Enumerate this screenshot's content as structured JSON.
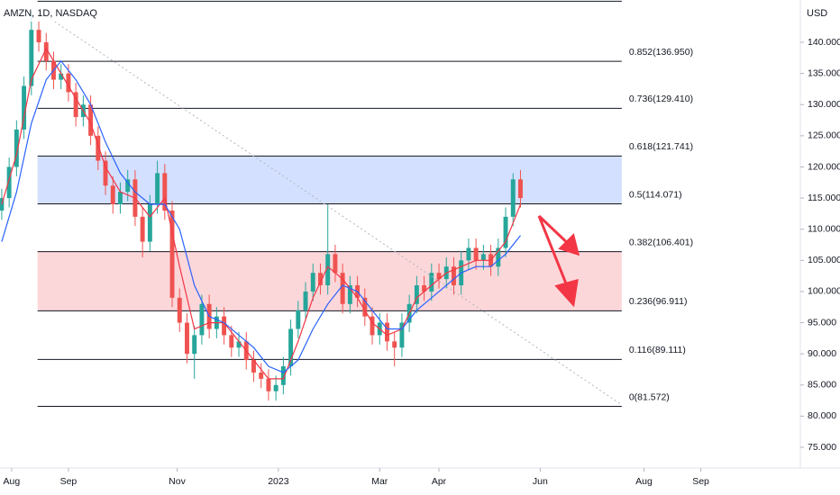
{
  "chart_data": {
    "type": "candlestick",
    "title": "AMZN, 1D, NASDAQ",
    "y_axis_label": "USD",
    "xlim": [
      -4.7,
      319.3
    ],
    "ylim": [
      71.68,
      146.79
    ],
    "xticks": [
      {
        "value": 0,
        "label": "Aug"
      },
      {
        "value": 23,
        "label": "Sep"
      },
      {
        "value": 67,
        "label": "Nov"
      },
      {
        "value": 108,
        "label": "2023"
      },
      {
        "value": 149,
        "label": "Mar"
      },
      {
        "value": 173,
        "label": "Apr"
      },
      {
        "value": 214,
        "label": "Jun"
      },
      {
        "value": 256,
        "label": "Aug"
      },
      {
        "value": 279,
        "label": "Sep"
      }
    ],
    "yticks": [
      {
        "value": 75,
        "label": "75.000"
      },
      {
        "value": 80,
        "label": "80.000"
      },
      {
        "value": 85,
        "label": "85.000"
      },
      {
        "value": 90,
        "label": "90.000"
      },
      {
        "value": 95,
        "label": "95.000"
      },
      {
        "value": 100,
        "label": "100.000"
      },
      {
        "value": 105,
        "label": "105.000"
      },
      {
        "value": 110,
        "label": "110.000"
      },
      {
        "value": 115,
        "label": "115.000"
      },
      {
        "value": 120,
        "label": "120.000"
      },
      {
        "value": 125,
        "label": "125.000"
      },
      {
        "value": 130,
        "label": "130.000"
      },
      {
        "value": 135,
        "label": "135.000"
      },
      {
        "value": 140,
        "label": "140.000"
      }
    ],
    "up_color": "#26a69a",
    "down_color": "#ef5350",
    "x": [
      -4,
      -1,
      2,
      5,
      8,
      11,
      14,
      17,
      20,
      23,
      26,
      29,
      32,
      35,
      38,
      41,
      44,
      47,
      50,
      53,
      56,
      59,
      62,
      65,
      68,
      71,
      74,
      77,
      80,
      83,
      86,
      89,
      92,
      95,
      98,
      101,
      104,
      107,
      110,
      113,
      116,
      119,
      122,
      125,
      128,
      131,
      134,
      137,
      140,
      143,
      146,
      149,
      152,
      155,
      158,
      161,
      164,
      167,
      170,
      173,
      176,
      179,
      182,
      185,
      188,
      191,
      194,
      197,
      200,
      203,
      206
    ],
    "open": [
      113,
      115,
      120,
      126,
      133,
      142,
      140,
      137,
      134,
      135,
      132,
      128,
      130,
      125,
      121,
      117,
      114,
      116,
      118,
      112,
      108,
      114,
      119,
      113,
      99,
      95,
      90,
      93,
      98,
      94,
      96,
      93,
      91,
      92,
      89,
      87,
      86,
      84,
      85,
      88,
      94,
      97,
      100,
      103,
      101,
      106,
      103,
      98,
      101,
      99,
      96,
      93,
      95,
      92,
      91,
      95,
      98,
      101,
      100,
      103,
      102,
      104,
      101,
      105,
      107,
      105,
      106,
      104,
      107,
      112,
      118
    ],
    "high": [
      116.5,
      121.5,
      127.5,
      134.5,
      145,
      143.5,
      141.5,
      138.5,
      136.5,
      136.5,
      133.5,
      131.5,
      131.5,
      126.5,
      122.5,
      118.5,
      117.5,
      119.5,
      119.5,
      113.5,
      115.5,
      121,
      120.5,
      114.5,
      100.5,
      96.5,
      94.5,
      99.5,
      99.5,
      97.5,
      97.5,
      94.5,
      93.5,
      93.5,
      90.5,
      88.5,
      87.5,
      86.5,
      89.5,
      95.5,
      98.5,
      101.5,
      104.5,
      104.5,
      114,
      107.5,
      104.5,
      102.5,
      102.5,
      100.5,
      97.5,
      96.5,
      96.5,
      93.5,
      96.5,
      99.5,
      102.5,
      102.5,
      104.5,
      104.5,
      105.5,
      105.5,
      106.5,
      108.5,
      108.5,
      107.5,
      107.5,
      108.5,
      113.5,
      119,
      119.5
    ],
    "low": [
      111.5,
      113.5,
      118.5,
      124.5,
      131.5,
      138.5,
      135.5,
      132.5,
      132.5,
      130.5,
      126.5,
      126.5,
      123.5,
      119.5,
      115.5,
      112.5,
      112.5,
      114.5,
      110.5,
      105.5,
      106.5,
      112.5,
      111.5,
      97.5,
      93.5,
      88.5,
      86,
      91.5,
      92.5,
      92.5,
      91.5,
      89.5,
      89.5,
      87.5,
      85.5,
      84.5,
      82.5,
      82.5,
      83.5,
      86.5,
      92.5,
      95.5,
      98.5,
      99.5,
      99.5,
      101.5,
      96.5,
      96.5,
      97.5,
      94.5,
      91.5,
      91.5,
      90.5,
      88,
      89.5,
      93.5,
      96.5,
      98.5,
      98.5,
      100.5,
      100.5,
      99.5,
      99.5,
      103.5,
      103.5,
      103.5,
      102.5,
      102.5,
      105.5,
      110.5,
      113.5
    ],
    "close": [
      115,
      120,
      126,
      133,
      142,
      140,
      137,
      134,
      135,
      132,
      128,
      130,
      125,
      121,
      117,
      114,
      116,
      118,
      112,
      108,
      114,
      119,
      113,
      99,
      95,
      90,
      93,
      98,
      94,
      96,
      93,
      91,
      92,
      89,
      87,
      86,
      84,
      85,
      88,
      94,
      97,
      100,
      103,
      101,
      106,
      103,
      98,
      101,
      99,
      96,
      93,
      95,
      92,
      91,
      95,
      98,
      101,
      100,
      103,
      102,
      104,
      101,
      105,
      107,
      105,
      106,
      104,
      107,
      112,
      118,
      115
    ],
    "ma_x": [
      -4,
      2,
      8,
      14,
      20,
      26,
      32,
      38,
      44,
      50,
      56,
      62,
      68,
      74,
      80,
      86,
      92,
      98,
      104,
      110,
      116,
      122,
      128,
      134,
      140,
      146,
      152,
      158,
      164,
      170,
      176,
      182,
      188,
      194,
      200,
      206
    ],
    "moving_averages": [
      {
        "color": "#f23645",
        "values": [
          114,
          122,
          134,
          139,
          135,
          131,
          127,
          120,
          116,
          115,
          112,
          115,
          104,
          94,
          95,
          95,
          92,
          89,
          86,
          86,
          92,
          99,
          104,
          102,
          99,
          95,
          93,
          94,
          99,
          101,
          103,
          104,
          105,
          105,
          108,
          114
        ]
      },
      {
        "color": "#2962ff",
        "values": [
          108,
          116,
          127,
          134,
          137,
          134,
          130,
          124,
          119,
          116,
          114,
          114,
          110,
          101,
          96,
          95,
          93,
          91,
          88,
          87,
          89,
          94,
          98,
          101,
          100,
          97,
          94,
          94,
          97,
          99,
          101,
          103,
          104,
          104,
          106,
          109
        ]
      }
    ],
    "fib_levels": [
      {
        "value": 146.6,
        "label": null
      },
      {
        "value": 136.95,
        "label": "0.852(136.950)"
      },
      {
        "value": 129.41,
        "label": "0.736(129.410)"
      },
      {
        "value": 121.741,
        "label": "0.618(121.741)"
      },
      {
        "value": 114.071,
        "label": "0.5(114.071)"
      },
      {
        "value": 106.401,
        "label": "0.382(106.401)"
      },
      {
        "value": 96.911,
        "label": "0.236(96.911)"
      },
      {
        "value": 89.111,
        "label": "0.116(89.111)"
      },
      {
        "value": 81.572,
        "label": "0(81.572)"
      }
    ],
    "fib_x_range": [
      10.5,
      247
    ],
    "zones": [
      {
        "from_level": 3,
        "to_level": 4,
        "color": "#2962ff"
      },
      {
        "from_level": 5,
        "to_level": 6,
        "color": "#f23645"
      }
    ]
  }
}
